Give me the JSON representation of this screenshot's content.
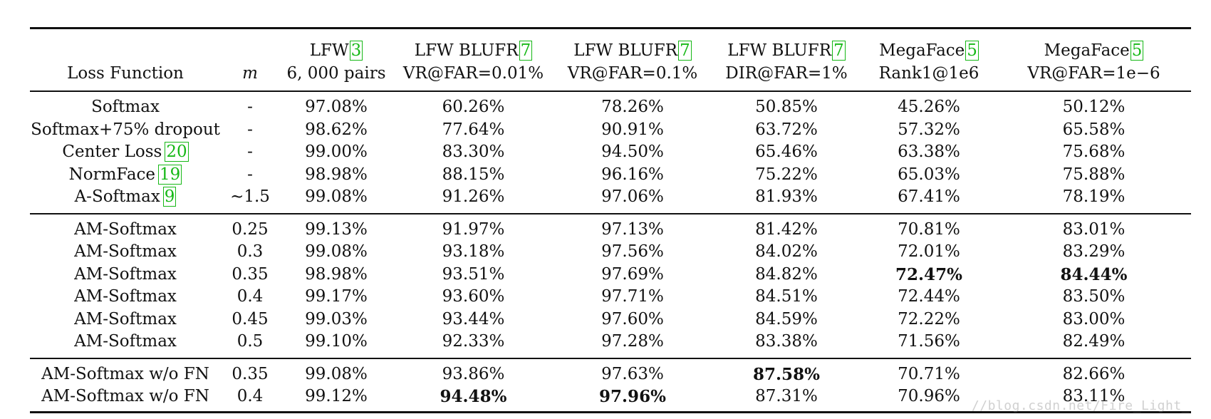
{
  "table": {
    "headers": [
      {
        "line1": "",
        "line2": "Loss Function",
        "cite": ""
      },
      {
        "line1": "",
        "line2": "m",
        "cite": ""
      },
      {
        "line1": "LFW",
        "line2": "6, 000 pairs",
        "cite": "3"
      },
      {
        "line1": "LFW BLUFR",
        "line2": "VR@FAR=0.01%",
        "cite": "7"
      },
      {
        "line1": "LFW BLUFR",
        "line2": "VR@FAR=0.1%",
        "cite": "7"
      },
      {
        "line1": "LFW BLUFR",
        "line2": "DIR@FAR=1%",
        "cite": "7"
      },
      {
        "line1": "MegaFace",
        "line2": "Rank1@1e6",
        "cite": "5"
      },
      {
        "line1": "MegaFace",
        "line2": "VR@FAR=1e−6",
        "cite": "5"
      }
    ],
    "groups": [
      [
        {
          "name": "Softmax",
          "cite": "",
          "m": "-",
          "values": [
            "97.08%",
            "60.26%",
            "78.26%",
            "50.85%",
            "45.26%",
            "50.12%"
          ],
          "bold": []
        },
        {
          "name": "Softmax+75% dropout",
          "cite": "",
          "m": "-",
          "values": [
            "98.62%",
            "77.64%",
            "90.91%",
            "63.72%",
            "57.32%",
            "65.58%"
          ],
          "bold": []
        },
        {
          "name": "Center Loss",
          "cite": "20",
          "m": "-",
          "values": [
            "99.00%",
            "83.30%",
            "94.50%",
            "65.46%",
            "63.38%",
            "75.68%"
          ],
          "bold": []
        },
        {
          "name": "NormFace",
          "cite": "19",
          "m": "-",
          "values": [
            "98.98%",
            "88.15%",
            "96.16%",
            "75.22%",
            "65.03%",
            "75.88%"
          ],
          "bold": []
        },
        {
          "name": "A-Softmax",
          "cite": "9",
          "m": "∼1.5",
          "values": [
            "99.08%",
            "91.26%",
            "97.06%",
            "81.93%",
            "67.41%",
            "78.19%"
          ],
          "bold": []
        }
      ],
      [
        {
          "name": "AM-Softmax",
          "cite": "",
          "m": "0.25",
          "values": [
            "99.13%",
            "91.97%",
            "97.13%",
            "81.42%",
            "70.81%",
            "83.01%"
          ],
          "bold": []
        },
        {
          "name": "AM-Softmax",
          "cite": "",
          "m": "0.3",
          "values": [
            "99.08%",
            "93.18%",
            "97.56%",
            "84.02%",
            "72.01%",
            "83.29%"
          ],
          "bold": []
        },
        {
          "name": "AM-Softmax",
          "cite": "",
          "m": "0.35",
          "values": [
            "98.98%",
            "93.51%",
            "97.69%",
            "84.82%",
            "72.47%",
            "84.44%"
          ],
          "bold": [
            4,
            5
          ]
        },
        {
          "name": "AM-Softmax",
          "cite": "",
          "m": "0.4",
          "values": [
            "99.17%",
            "93.60%",
            "97.71%",
            "84.51%",
            "72.44%",
            "83.50%"
          ],
          "bold": []
        },
        {
          "name": "AM-Softmax",
          "cite": "",
          "m": "0.45",
          "values": [
            "99.03%",
            "93.44%",
            "97.60%",
            "84.59%",
            "72.22%",
            "83.00%"
          ],
          "bold": []
        },
        {
          "name": "AM-Softmax",
          "cite": "",
          "m": "0.5",
          "values": [
            "99.10%",
            "92.33%",
            "97.28%",
            "83.38%",
            "71.56%",
            "82.49%"
          ],
          "bold": []
        }
      ],
      [
        {
          "name": "AM-Softmax w/o FN",
          "cite": "",
          "m": "0.35",
          "values": [
            "99.08%",
            "93.86%",
            "97.63%",
            "87.58%",
            "70.71%",
            "82.66%"
          ],
          "bold": [
            3
          ]
        },
        {
          "name": "AM-Softmax w/o FN",
          "cite": "",
          "m": "0.4",
          "values": [
            "99.12%",
            "94.48%",
            "97.96%",
            "87.31%",
            "70.96%",
            "83.11%"
          ],
          "bold": [
            1,
            2
          ]
        }
      ]
    ]
  },
  "watermark": "//blog.csdn.net/Fire_Light_"
}
